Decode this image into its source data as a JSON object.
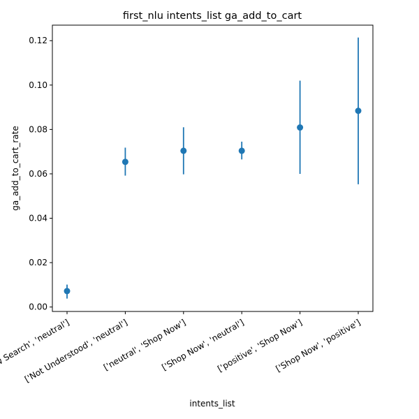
{
  "chart_data": {
    "type": "scatter",
    "title": "first_nlu intents_list ga_add_to_cart",
    "xlabel": "intents_list",
    "ylabel": "ga_add_to_cart_rate",
    "categories": [
      "['New Search', 'neutral']",
      "['Not Understood', 'neutral']",
      "['neutral', 'Shop Now']",
      "['Shop Now', 'neutral']",
      "['positive', 'Shop Now']",
      "['Shop Now', 'positive']"
    ],
    "values": [
      0.0072,
      0.0654,
      0.0704,
      0.0704,
      0.0809,
      0.0884
    ],
    "error_low": [
      0.0038,
      0.0592,
      0.0598,
      0.0665,
      0.06,
      0.0553
    ],
    "error_high": [
      0.0101,
      0.0718,
      0.081,
      0.0745,
      0.102,
      0.1214
    ],
    "ylim": [
      -0.002,
      0.127
    ],
    "yticks": [
      0.0,
      0.02,
      0.04,
      0.06,
      0.08,
      0.1,
      0.12
    ],
    "ytick_labels": [
      "0.00",
      "0.02",
      "0.04",
      "0.06",
      "0.08",
      "0.10",
      "0.12"
    ],
    "grid": false,
    "color": "#1f77b4"
  }
}
